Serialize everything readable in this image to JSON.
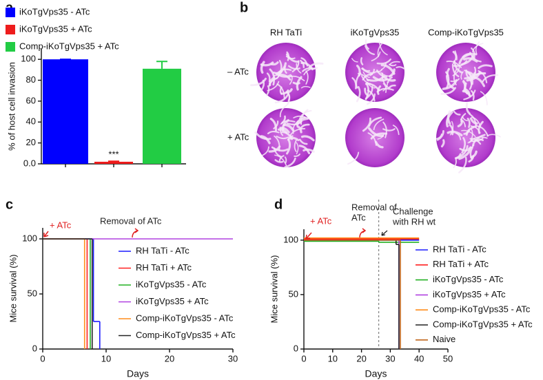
{
  "chart_data": [
    {
      "type": "bar",
      "label": "a",
      "y_label": "% of host cell invasion",
      "categories": [
        null
      ],
      "series": [
        {
          "name": "iKoTgVps35 - ATc",
          "color": "#0000ff",
          "values": [
            100
          ],
          "errors": [
            0
          ]
        },
        {
          "name": "iKoTgVps35 + ATc",
          "color": "#ee1c1c",
          "values": [
            2
          ],
          "errors": [
            0.5
          ]
        },
        {
          "name": "Comp-iKoTgVps35 + ATc",
          "color": "#22cc44",
          "values": [
            91
          ],
          "errors": [
            7
          ]
        }
      ],
      "annotation": "***",
      "ylim": [
        0,
        110
      ],
      "yticks": [
        {
          "value": 0,
          "label": "0.0"
        },
        20,
        40,
        60,
        80,
        100
      ]
    },
    {
      "type": "image-grid",
      "label": "b",
      "columns": [
        "RH TaTi",
        "iKoTgVps35",
        "Comp-iKoTgVps35"
      ],
      "rows": [
        "– ATc",
        "+ ATc"
      ]
    },
    {
      "type": "step",
      "label": "c",
      "x_label": "Days",
      "y_label": "Mice survival (%)",
      "annotations": [
        [
          "+ ATc"
        ],
        [
          "Removal of ATc"
        ]
      ],
      "series": [
        {
          "name": "RH TaTi - ATc",
          "color": "#1a1aff",
          "x": [
            0,
            8,
            9
          ],
          "values": [
            100,
            25,
            0
          ]
        },
        {
          "name": "RH TaTi + ATc",
          "color": "#ff2020",
          "x": [
            0,
            7
          ],
          "values": [
            100,
            0
          ]
        },
        {
          "name": "iKoTgVps35 - ATc",
          "color": "#22b022",
          "x": [
            0,
            7.5
          ],
          "values": [
            100,
            0
          ]
        },
        {
          "name": "iKoTgVps35 + ATc",
          "color": "#b040e0",
          "x": [
            0,
            30
          ],
          "values": [
            100,
            100
          ]
        },
        {
          "name": "Comp-iKoTgVps35 - ATc",
          "color": "#ff8c1a",
          "x": [
            0,
            6.6
          ],
          "values": [
            100,
            0
          ]
        },
        {
          "name": "Comp-iKoTgVps35 + ATc",
          "color": "#222222",
          "x": [
            0,
            7.8
          ],
          "values": [
            100,
            0
          ]
        }
      ],
      "xlim": [
        0,
        30
      ],
      "xticks": [
        0,
        10,
        20,
        30
      ],
      "ylim": [
        0,
        110
      ],
      "yticks": [
        0,
        50,
        100
      ]
    },
    {
      "type": "step",
      "label": "d",
      "x_label": "Days",
      "y_label": "Mice survival (%)",
      "annotations": [
        [
          "+ ATc"
        ],
        [
          "Removal of",
          "ATc"
        ],
        [
          "Challenge",
          "with RH wt"
        ]
      ],
      "vline": 26,
      "series": [
        {
          "name": "RH TaTi - ATc",
          "color": "#1a1aff",
          "x": [
            0,
            40
          ],
          "values": [
            100,
            100
          ]
        },
        {
          "name": "RH TaTi + ATc",
          "color": "#ff2020",
          "x": [
            0,
            40
          ],
          "values": [
            101,
            101
          ]
        },
        {
          "name": "iKoTgVps35 - ATc",
          "color": "#22b022",
          "x": [
            0,
            26,
            40
          ],
          "values": [
            99,
            98,
            98
          ]
        },
        {
          "name": "iKoTgVps35 + ATc",
          "color": "#b040e0",
          "x": [
            0,
            33
          ],
          "values": [
            100,
            0
          ]
        },
        {
          "name": "Comp-iKoTgVps35 - ATc",
          "color": "#ff8c1a",
          "x": [
            0,
            40
          ],
          "values": [
            102,
            102
          ]
        },
        {
          "name": "Comp-iKoTgVps35 + ATc",
          "color": "#222222",
          "x": [
            0,
            32,
            33
          ],
          "values": [
            100,
            96,
            0
          ]
        },
        {
          "name": "Naive",
          "color": "#c0651a",
          "x": [
            0,
            33.5
          ],
          "values": [
            100,
            0
          ]
        }
      ],
      "xlim": [
        0,
        50
      ],
      "xticks": [
        0,
        10,
        20,
        30,
        40,
        50
      ],
      "ylim": [
        0,
        110
      ],
      "yticks": [
        0,
        50,
        100
      ]
    }
  ]
}
